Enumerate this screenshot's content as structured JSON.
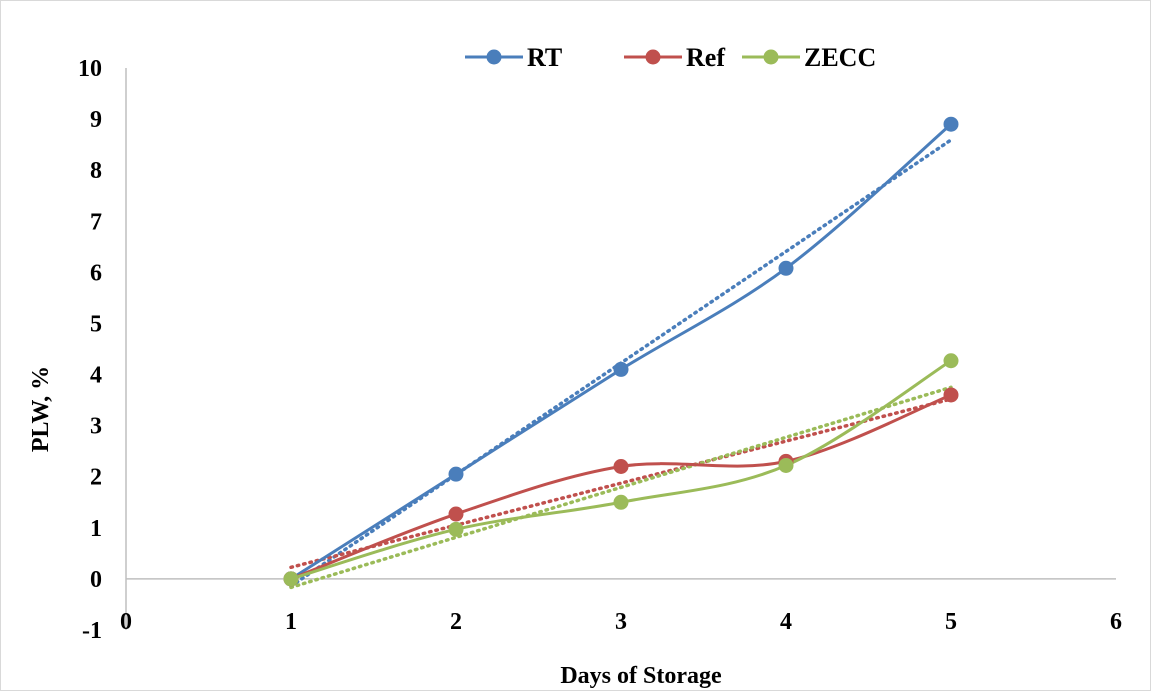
{
  "chart_data": {
    "type": "line",
    "xlabel": "Days of Storage",
    "ylabel": "PLW, %",
    "xlim": [
      0,
      6
    ],
    "ylim": [
      -1,
      10
    ],
    "x_ticks": [
      "0",
      "1",
      "2",
      "3",
      "4",
      "5",
      "6"
    ],
    "y_ticks": [
      "-1",
      "0",
      "1",
      "2",
      "3",
      "4",
      "5",
      "6",
      "7",
      "8",
      "9",
      "10"
    ],
    "grid": false,
    "legend_position": "top",
    "smoothed_lines": true,
    "linear_trendlines": true,
    "trendline_style": "dotted",
    "series": [
      {
        "name": "RT",
        "color": "#4a7ebb",
        "x": [
          1,
          2,
          3,
          4,
          5
        ],
        "y": [
          0,
          2.05,
          4.1,
          6.08,
          8.9
        ]
      },
      {
        "name": "Ref",
        "color": "#c0504d",
        "x": [
          1,
          2,
          3,
          4,
          5
        ],
        "y": [
          0,
          1.27,
          2.2,
          2.3,
          3.6
        ]
      },
      {
        "name": "ZECC",
        "color": "#9bbb59",
        "x": [
          1,
          2,
          3,
          4,
          5
        ],
        "y": [
          0,
          0.97,
          1.5,
          2.22,
          4.27
        ]
      }
    ]
  }
}
